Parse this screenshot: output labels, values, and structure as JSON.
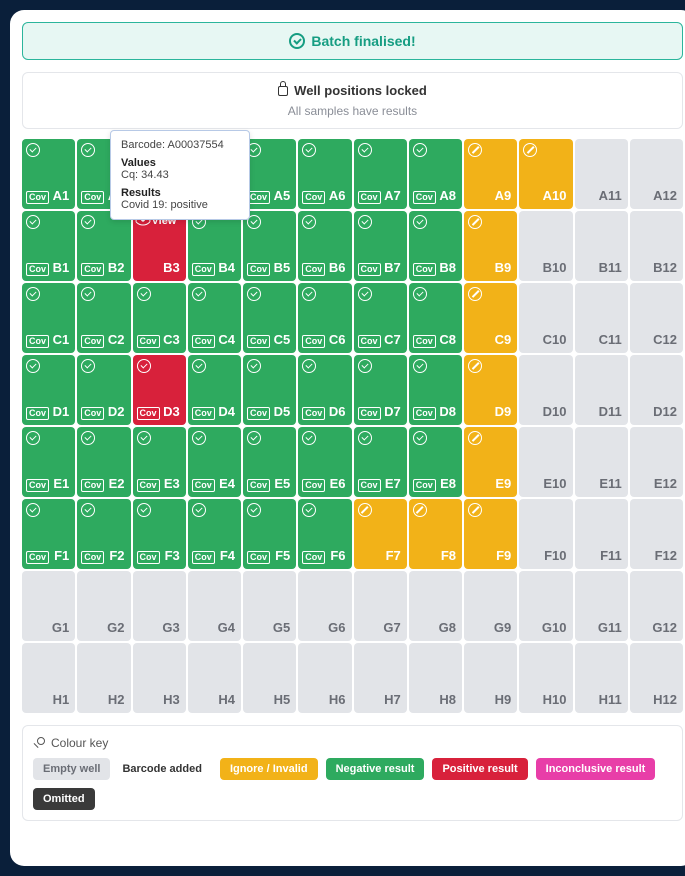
{
  "banner": {
    "text": "Batch finalised!"
  },
  "info": {
    "heading": "Well positions locked",
    "sub": "All samples have results"
  },
  "tooltip": {
    "barcode_label": "Barcode:",
    "barcode_value": "A00037554",
    "values_label": "Values",
    "cq_text": "Cq: 34.43",
    "results_label": "Results",
    "result_text": "Covid 19: positive"
  },
  "cov_tag": "Cov",
  "view_label": "View",
  "rows": [
    "A",
    "B",
    "C",
    "D",
    "E",
    "F",
    "G",
    "H"
  ],
  "cols": [
    1,
    2,
    3,
    4,
    5,
    6,
    7,
    8,
    9,
    10,
    11,
    12
  ],
  "wells": {
    "A1": {
      "s": "green",
      "i": "check",
      "c": true
    },
    "A2": {
      "s": "green",
      "i": "check",
      "c": true
    },
    "A3": {
      "s": "green",
      "i": "check",
      "c": true
    },
    "A4": {
      "s": "green",
      "i": "check",
      "c": true
    },
    "A5": {
      "s": "green",
      "i": "check",
      "c": true
    },
    "A6": {
      "s": "green",
      "i": "check",
      "c": true
    },
    "A7": {
      "s": "green",
      "i": "check",
      "c": true
    },
    "A8": {
      "s": "green",
      "i": "check",
      "c": true
    },
    "A9": {
      "s": "amber",
      "i": "slash",
      "c": false
    },
    "A10": {
      "s": "amber",
      "i": "slash",
      "c": false
    },
    "A11": {
      "s": "empty"
    },
    "A12": {
      "s": "empty"
    },
    "B1": {
      "s": "green",
      "i": "check",
      "c": true
    },
    "B2": {
      "s": "green",
      "i": "check",
      "c": true
    },
    "B3": {
      "s": "red",
      "i": "view",
      "c": false
    },
    "B4": {
      "s": "green",
      "i": "check",
      "c": true
    },
    "B5": {
      "s": "green",
      "i": "check",
      "c": true
    },
    "B6": {
      "s": "green",
      "i": "check",
      "c": true
    },
    "B7": {
      "s": "green",
      "i": "check",
      "c": true
    },
    "B8": {
      "s": "green",
      "i": "check",
      "c": true
    },
    "B9": {
      "s": "amber",
      "i": "slash",
      "c": false
    },
    "B10": {
      "s": "empty"
    },
    "B11": {
      "s": "empty"
    },
    "B12": {
      "s": "empty"
    },
    "C1": {
      "s": "green",
      "i": "check",
      "c": true
    },
    "C2": {
      "s": "green",
      "i": "check",
      "c": true
    },
    "C3": {
      "s": "green",
      "i": "check",
      "c": true
    },
    "C4": {
      "s": "green",
      "i": "check",
      "c": true
    },
    "C5": {
      "s": "green",
      "i": "check",
      "c": true
    },
    "C6": {
      "s": "green",
      "i": "check",
      "c": true
    },
    "C7": {
      "s": "green",
      "i": "check",
      "c": true
    },
    "C8": {
      "s": "green",
      "i": "check",
      "c": true
    },
    "C9": {
      "s": "amber",
      "i": "slash",
      "c": false
    },
    "C10": {
      "s": "empty"
    },
    "C11": {
      "s": "empty"
    },
    "C12": {
      "s": "empty"
    },
    "D1": {
      "s": "green",
      "i": "check",
      "c": true
    },
    "D2": {
      "s": "green",
      "i": "check",
      "c": true
    },
    "D3": {
      "s": "red",
      "i": "check",
      "c": true
    },
    "D4": {
      "s": "green",
      "i": "check",
      "c": true
    },
    "D5": {
      "s": "green",
      "i": "check",
      "c": true
    },
    "D6": {
      "s": "green",
      "i": "check",
      "c": true
    },
    "D7": {
      "s": "green",
      "i": "check",
      "c": true
    },
    "D8": {
      "s": "green",
      "i": "check",
      "c": true
    },
    "D9": {
      "s": "amber",
      "i": "slash",
      "c": false
    },
    "D10": {
      "s": "empty"
    },
    "D11": {
      "s": "empty"
    },
    "D12": {
      "s": "empty"
    },
    "E1": {
      "s": "green",
      "i": "check",
      "c": true
    },
    "E2": {
      "s": "green",
      "i": "check",
      "c": true
    },
    "E3": {
      "s": "green",
      "i": "check",
      "c": true
    },
    "E4": {
      "s": "green",
      "i": "check",
      "c": true
    },
    "E5": {
      "s": "green",
      "i": "check",
      "c": true
    },
    "E6": {
      "s": "green",
      "i": "check",
      "c": true
    },
    "E7": {
      "s": "green",
      "i": "check",
      "c": true
    },
    "E8": {
      "s": "green",
      "i": "check",
      "c": true
    },
    "E9": {
      "s": "amber",
      "i": "slash",
      "c": false
    },
    "E10": {
      "s": "empty"
    },
    "E11": {
      "s": "empty"
    },
    "E12": {
      "s": "empty"
    },
    "F1": {
      "s": "green",
      "i": "check",
      "c": true
    },
    "F2": {
      "s": "green",
      "i": "check",
      "c": true
    },
    "F3": {
      "s": "green",
      "i": "check",
      "c": true
    },
    "F4": {
      "s": "green",
      "i": "check",
      "c": true
    },
    "F5": {
      "s": "green",
      "i": "check",
      "c": true
    },
    "F6": {
      "s": "green",
      "i": "check",
      "c": true
    },
    "F7": {
      "s": "amber",
      "i": "slash",
      "c": false
    },
    "F8": {
      "s": "amber",
      "i": "slash",
      "c": false
    },
    "F9": {
      "s": "amber",
      "i": "slash",
      "c": false
    },
    "F10": {
      "s": "empty"
    },
    "F11": {
      "s": "empty"
    },
    "F12": {
      "s": "empty"
    },
    "G1": {
      "s": "empty"
    },
    "G2": {
      "s": "empty"
    },
    "G3": {
      "s": "empty"
    },
    "G4": {
      "s": "empty"
    },
    "G5": {
      "s": "empty"
    },
    "G6": {
      "s": "empty"
    },
    "G7": {
      "s": "empty"
    },
    "G8": {
      "s": "empty"
    },
    "G9": {
      "s": "empty"
    },
    "G10": {
      "s": "empty"
    },
    "G11": {
      "s": "empty"
    },
    "G12": {
      "s": "empty"
    },
    "H1": {
      "s": "empty"
    },
    "H2": {
      "s": "empty"
    },
    "H3": {
      "s": "empty"
    },
    "H4": {
      "s": "empty"
    },
    "H5": {
      "s": "empty"
    },
    "H6": {
      "s": "empty"
    },
    "H7": {
      "s": "empty"
    },
    "H8": {
      "s": "empty"
    },
    "H9": {
      "s": "empty"
    },
    "H10": {
      "s": "empty"
    },
    "H11": {
      "s": "empty"
    },
    "H12": {
      "s": "empty"
    }
  },
  "legend": {
    "title": "Colour key",
    "items": [
      {
        "label": "Empty well",
        "cls": "empty"
      },
      {
        "label": "Barcode added",
        "cls": "bare"
      },
      {
        "label": "Ignore / Invalid",
        "cls": "ignore"
      },
      {
        "label": "Negative result",
        "cls": "neg"
      },
      {
        "label": "Positive result",
        "cls": "pos"
      },
      {
        "label": "Inconclusive result",
        "cls": "inc"
      },
      {
        "label": "Omitted",
        "cls": "om"
      }
    ]
  },
  "colors": {
    "green": "#2eaa5f",
    "amber": "#f2b218",
    "red": "#d8213b",
    "empty": "#e2e4e8",
    "pink": "#e83ea8",
    "dark": "#3a3a3a",
    "teal": "#169d82"
  }
}
